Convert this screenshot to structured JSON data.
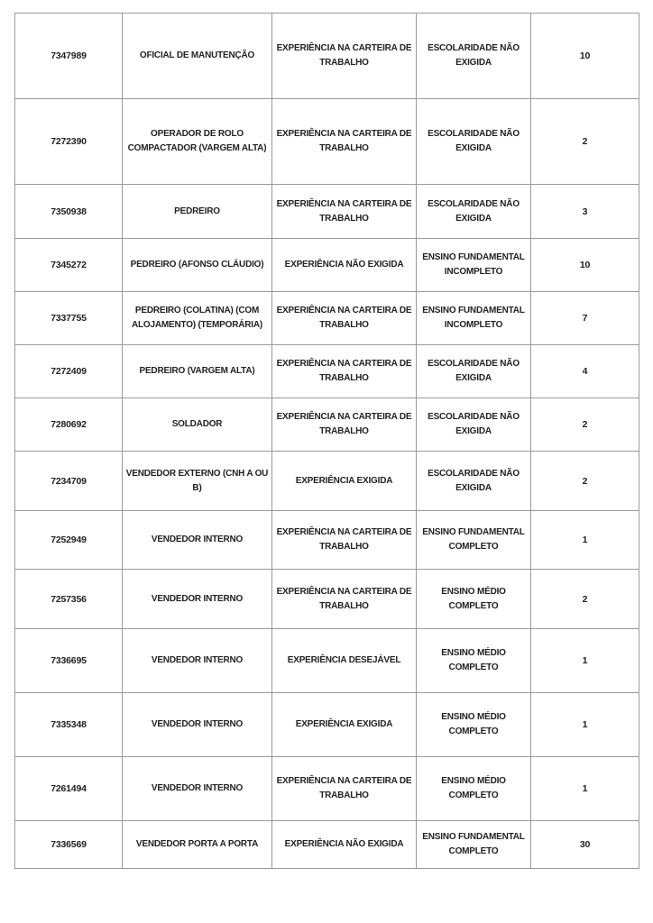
{
  "rows": [
    {
      "code": "7347989",
      "role": "OFICIAL DE MANUTENÇÃO",
      "experience": "EXPERIÊNCIA NA CARTEIRA DE TRABALHO",
      "education": "ESCOLARIDADE NÃO EXIGIDA",
      "vacancies": "10"
    },
    {
      "code": "7272390",
      "role": "OPERADOR DE ROLO COMPACTADOR (VARGEM ALTA)",
      "experience": "EXPERIÊNCIA NA CARTEIRA DE TRABALHO",
      "education": "ESCOLARIDADE NÃO EXIGIDA",
      "vacancies": "2"
    },
    {
      "code": "7350938",
      "role": "PEDREIRO",
      "experience": "EXPERIÊNCIA NA CARTEIRA DE TRABALHO",
      "education": "ESCOLARIDADE NÃO EXIGIDA",
      "vacancies": "3"
    },
    {
      "code": "7345272",
      "role": "PEDREIRO (AFONSO CLÁUDIO)",
      "experience": "EXPERIÊNCIA NÃO EXIGIDA",
      "education": "ENSINO FUNDAMENTAL INCOMPLETO",
      "vacancies": "10"
    },
    {
      "code": "7337755",
      "role": "PEDREIRO (COLATINA) (COM ALOJAMENTO) (TEMPORÁRIA)",
      "experience": "EXPERIÊNCIA NA CARTEIRA DE TRABALHO",
      "education": "ENSINO FUNDAMENTAL INCOMPLETO",
      "vacancies": "7"
    },
    {
      "code": "7272409",
      "role": "PEDREIRO (VARGEM ALTA)",
      "experience": "EXPERIÊNCIA NA CARTEIRA DE TRABALHO",
      "education": "ESCOLARIDADE NÃO EXIGIDA",
      "vacancies": "4"
    },
    {
      "code": "7280692",
      "role": "SOLDADOR",
      "experience": "EXPERIÊNCIA NA CARTEIRA DE TRABALHO",
      "education": "ESCOLARIDADE NÃO EXIGIDA",
      "vacancies": "2"
    },
    {
      "code": "7234709",
      "role": "VENDEDOR EXTERNO (CNH A OU B)",
      "experience": "EXPERIÊNCIA EXIGIDA",
      "education": "ESCOLARIDADE NÃO EXIGIDA",
      "vacancies": "2"
    },
    {
      "code": "7252949",
      "role": "VENDEDOR INTERNO",
      "experience": "EXPERIÊNCIA NA CARTEIRA DE TRABALHO",
      "education": "ENSINO FUNDAMENTAL COMPLETO",
      "vacancies": "1"
    },
    {
      "code": "7257356",
      "role": "VENDEDOR INTERNO",
      "experience": "EXPERIÊNCIA NA CARTEIRA DE TRABALHO",
      "education": "ENSINO MÉDIO COMPLETO",
      "vacancies": "2"
    },
    {
      "code": "7336695",
      "role": "VENDEDOR INTERNO",
      "experience": "EXPERIÊNCIA DESEJÁVEL",
      "education": "ENSINO MÉDIO COMPLETO",
      "vacancies": "1"
    },
    {
      "code": "7335348",
      "role": "VENDEDOR INTERNO",
      "experience": "EXPERIÊNCIA EXIGIDA",
      "education": "ENSINO MÉDIO COMPLETO",
      "vacancies": "1"
    },
    {
      "code": "7261494",
      "role": "VENDEDOR INTERNO",
      "experience": "EXPERIÊNCIA NA CARTEIRA DE TRABALHO",
      "education": "ENSINO MÉDIO COMPLETO",
      "vacancies": "1"
    },
    {
      "code": "7336569",
      "role": "VENDEDOR PORTA A PORTA",
      "experience": "EXPERIÊNCIA NÃO EXIGIDA",
      "education": "ENSINO FUNDAMENTAL COMPLETO",
      "vacancies": "30"
    }
  ]
}
